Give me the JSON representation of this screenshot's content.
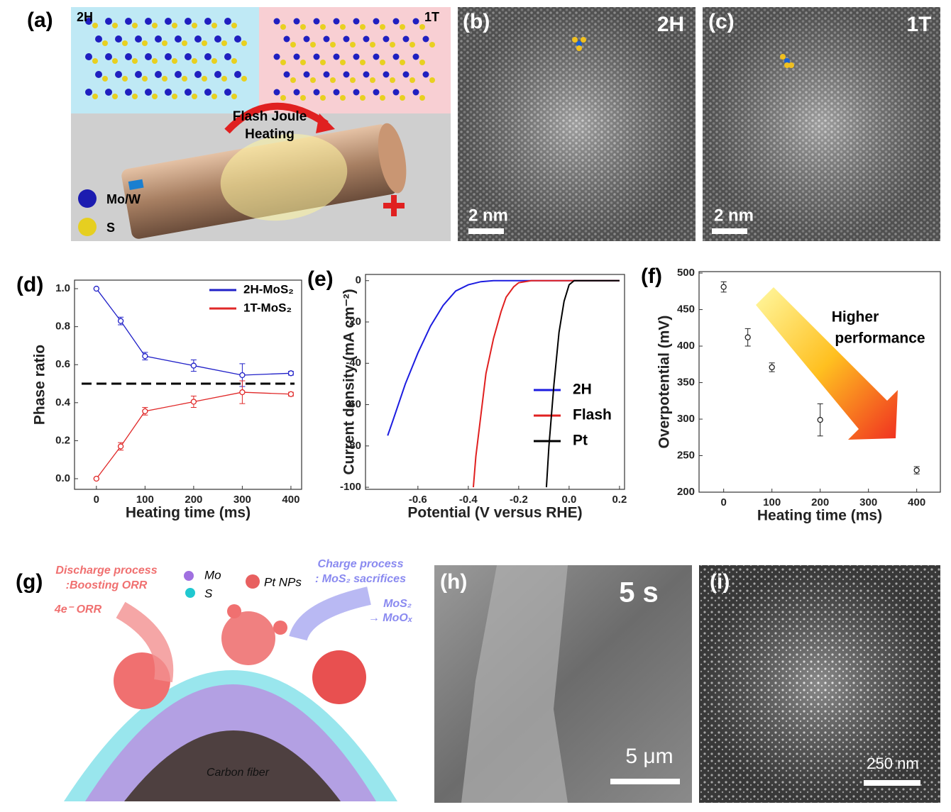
{
  "panels": {
    "a": {
      "label": "(a)",
      "phase_left": "2H",
      "phase_right": "1T",
      "process": [
        "Flash Joule",
        "Heating"
      ],
      "legend": [
        "Mo/W",
        "S"
      ]
    },
    "b": {
      "label": "(b)",
      "phase": "2H",
      "scale": "2 nm"
    },
    "c": {
      "label": "(c)",
      "phase": "1T",
      "scale": "2 nm"
    },
    "g": {
      "label": "(g)",
      "discharge": [
        "Discharge process",
        ":Boosting ORR"
      ],
      "orr": "4e⁻ ORR",
      "legend": [
        "Mo",
        "S",
        "Pt NPs"
      ],
      "charge": [
        "Charge process",
        ": MoS₂ sacrifices"
      ],
      "conversion": [
        "MoS₂",
        "→ MoOₓ"
      ],
      "fiber": "Carbon fiber"
    },
    "h": {
      "label": "(h)",
      "time": "5 s",
      "scale": "5 μm"
    },
    "i": {
      "label": "(i)",
      "scale": "250 nm"
    }
  },
  "chart_data": [
    {
      "type": "line",
      "label": "(d)",
      "x_label": "Heating time (ms)",
      "y_label": "Phase ratio",
      "x": [
        0,
        50,
        100,
        200,
        300,
        400
      ],
      "series": [
        {
          "name": "2H-MoS₂",
          "color": "#2020c8",
          "values": [
            1.0,
            0.83,
            0.645,
            0.595,
            0.545,
            0.555
          ],
          "errors": [
            0,
            0.02,
            0.02,
            0.03,
            0.06,
            0.01
          ]
        },
        {
          "name": "1T-MoS₂",
          "color": "#e02828",
          "values": [
            0,
            0.17,
            0.355,
            0.405,
            0.455,
            0.445
          ],
          "errors": [
            0,
            0.02,
            0.02,
            0.03,
            0.06,
            0.01
          ]
        }
      ],
      "hline": 0.5,
      "xlim": [
        -45,
        422
      ],
      "ylim": [
        -0.056,
        1.045
      ],
      "xticks": [
        0,
        100,
        200,
        300,
        400
      ],
      "yticks": [
        {
          "value": 0,
          "label": "0.0"
        },
        0.2,
        0.4,
        0.6,
        0.8,
        {
          "value": 1,
          "label": "1.0"
        }
      ]
    },
    {
      "type": "curve",
      "label": "(e)",
      "x_label": "Potential (V versus RHE)",
      "y_label": "Current density (mA cm⁻²)",
      "series": [
        {
          "name": "2H",
          "color": "#1c1ce0",
          "x": [
            -0.72,
            -0.7,
            -0.65,
            -0.6,
            -0.55,
            -0.5,
            -0.45,
            -0.4,
            -0.35,
            -0.3,
            0.2
          ],
          "values": [
            -75,
            -68,
            -50,
            -35,
            -22,
            -12,
            -5,
            -2,
            -0.5,
            0,
            0
          ]
        },
        {
          "name": "Flash",
          "color": "#e02020",
          "x": [
            -0.38,
            -0.37,
            -0.35,
            -0.33,
            -0.3,
            -0.27,
            -0.25,
            -0.22,
            -0.2,
            -0.15,
            0.2
          ],
          "values": [
            -100,
            -85,
            -65,
            -45,
            -28,
            -15,
            -8,
            -3,
            -1,
            0,
            0
          ]
        },
        {
          "name": "Pt",
          "color": "#000000",
          "x": [
            -0.09,
            -0.08,
            -0.06,
            -0.04,
            -0.02,
            0,
            0.02,
            0.2
          ],
          "values": [
            -100,
            -80,
            -50,
            -25,
            -10,
            -2,
            0,
            0
          ]
        }
      ],
      "xlim": [
        -0.808,
        0.22
      ],
      "ylim": [
        -101,
        3
      ],
      "xticks": [
        -0.6,
        -0.4,
        -0.2,
        {
          "value": 0,
          "label": "0.0"
        },
        0.2
      ],
      "yticks": [
        0,
        -20,
        -40,
        -60,
        -80,
        -100
      ]
    },
    {
      "type": "scatter",
      "label": "(f)",
      "x_label": "Heating time (ms)",
      "y_label": "Overpotential (mV)",
      "annotation": [
        "Higher",
        "performance"
      ],
      "x": [
        0,
        50,
        100,
        200,
        400
      ],
      "series": [
        {
          "color": "#222222",
          "values": [
            481,
            412,
            371,
            299,
            230
          ],
          "errors": [
            7,
            12,
            6,
            22,
            5
          ]
        }
      ],
      "xlim": [
        -51,
        449
      ],
      "ylim": [
        200,
        502
      ],
      "xticks": [
        0,
        100,
        200,
        300,
        400
      ],
      "yticks": [
        200,
        250,
        300,
        350,
        400,
        450,
        500
      ]
    }
  ]
}
